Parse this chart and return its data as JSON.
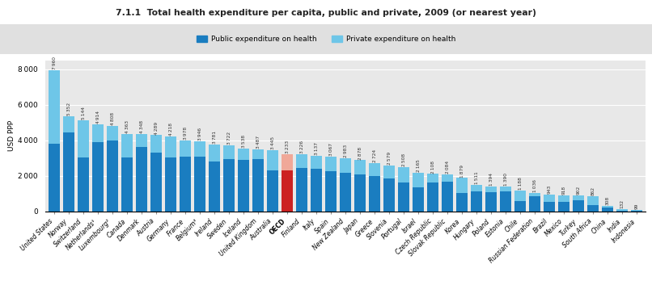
{
  "title": "7.1.1  Total health expenditure per capita, public and private, 2009 (or nearest year)",
  "ylabel": "USD PPP",
  "legend_public": "Public expenditure on health",
  "legend_private": "Private expenditure on health",
  "ylim": [
    0,
    8500
  ],
  "yticks": [
    0,
    2000,
    4000,
    6000,
    8000
  ],
  "plot_bg": "#e8e8e8",
  "fig_bg": "#ffffff",
  "legend_bg": "#e0e0e0",
  "public_color": "#1a7dc0",
  "private_color": "#6ec6e8",
  "oecd_public_color": "#cc2222",
  "oecd_private_color": "#f0a898",
  "countries": [
    "United States",
    "Norway",
    "Switzerland",
    "Netherlands¹",
    "Luxembourg²",
    "Canada",
    "Denmark",
    "Austria",
    "Germany",
    "France",
    "Belgium³",
    "Ireland",
    "Sweden",
    "Iceland",
    "United Kingdom",
    "Australia",
    "OECD",
    "Finland",
    "Italy",
    "Spain",
    "New Zealand",
    "Japan",
    "Greece",
    "Slovenia",
    "Portugal",
    "Israel",
    "Czech Republic",
    "Slovak Republic",
    "Korea",
    "Hungary",
    "Poland",
    "Estonia",
    "Chile",
    "Russian Federation",
    "Brazil",
    "Mexico",
    "Turkey",
    "South Africa",
    "China",
    "India",
    "Indonesia"
  ],
  "totals": [
    7960,
    5352,
    5144,
    4914,
    4808,
    4363,
    4348,
    4289,
    4218,
    3978,
    3946,
    3781,
    3722,
    3538,
    3487,
    3445,
    3233,
    3226,
    3137,
    3067,
    2983,
    2878,
    2724,
    2579,
    2508,
    2165,
    2108,
    2084,
    1879,
    1511,
    1394,
    1390,
    1188,
    1036,
    943,
    918,
    902,
    862,
    308,
    132,
    99
  ],
  "public_values": [
    3793,
    4464,
    3020,
    3891,
    4001,
    3037,
    3625,
    3292,
    3057,
    3071,
    3070,
    2811,
    2958,
    2895,
    2924,
    2331,
    2306,
    2427,
    2389,
    2244,
    2169,
    2099,
    1996,
    1857,
    1617,
    1368,
    1626,
    1660,
    1020,
    1127,
    1072,
    1119,
    580,
    870,
    526,
    543,
    649,
    349,
    203,
    40,
    55
  ]
}
